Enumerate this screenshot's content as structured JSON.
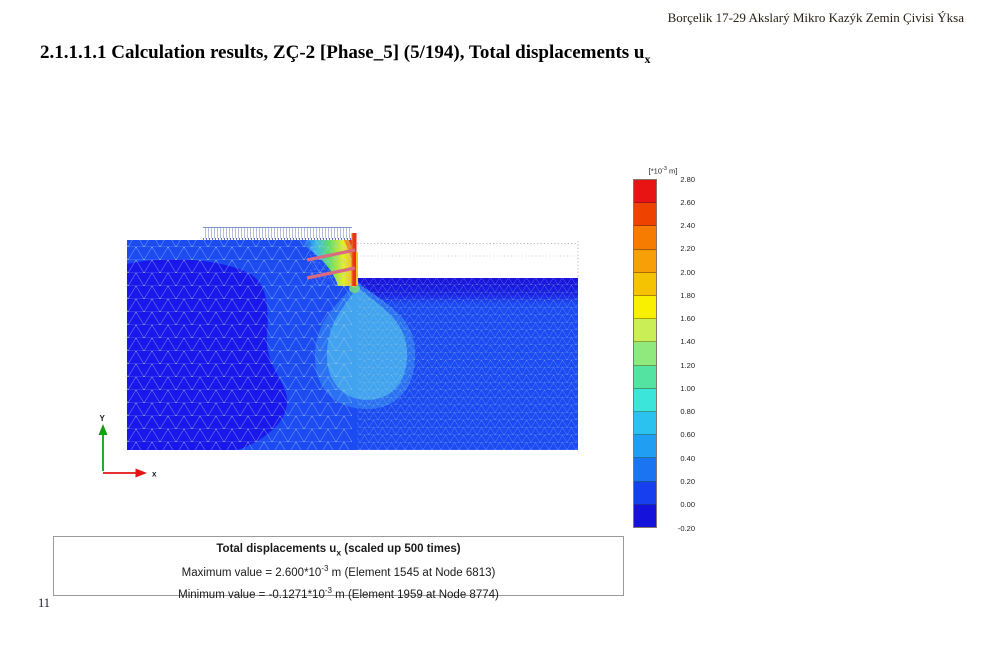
{
  "page": {
    "header_right": "Borçelik 17-29 Akslarý Mikro Kazýk Zemin Çivisi Ýksa",
    "page_number": "11"
  },
  "title": {
    "prefix": "2.1.1.1.1 Calculation results, ZÇ-2 [Phase_5] (5/194), Total displacements u",
    "subscript": "x"
  },
  "figure": {
    "axes": {
      "x_label": "x",
      "y_label": "Y"
    },
    "legend": {
      "unit_prefix": "[*10",
      "unit_exponent": "-3",
      "unit_suffix": " m]",
      "ticks": [
        "2.80",
        "2.60",
        "2.40",
        "2.20",
        "2.00",
        "1.80",
        "1.60",
        "1.40",
        "1.20",
        "1.00",
        "0.80",
        "0.60",
        "0.40",
        "0.20",
        "0.00",
        "-0.20"
      ],
      "band_colors": [
        "#e81313",
        "#ee4200",
        "#f57c00",
        "#f89e07",
        "#f6c302",
        "#f9f000",
        "#c9ee56",
        "#90e97d",
        "#55e3a2",
        "#3ce5da",
        "#2cc2ef",
        "#1f9ef2",
        "#1b74f1",
        "#173ff0",
        "#1512dc"
      ]
    },
    "colors": {
      "soil_main": "#1c4bf2",
      "soil_dark_zone": "#1a17ea",
      "excavation_dark_band": "#1a13da",
      "bulb_halo": "#2b72f2",
      "bulb_light_blue": "#42a3ee",
      "wall_red": "#e8301c",
      "nail_pink": "#d96a80",
      "load_hatch": "#7e95c8",
      "x_axis_red": "#e41414",
      "y_axis_green": "#12a012"
    }
  },
  "caption": {
    "title_prefix": "Total displacements u",
    "title_sub": "x",
    "title_suffix": " (scaled up 500 times)",
    "max_prefix": "Maximum value = 2.600*10",
    "max_exp": "-3",
    "max_suffix": " m (Element 1545 at Node 6813)",
    "min_prefix": "Minimum value = -0.1271*10",
    "min_exp": "-3",
    "min_suffix": " m (Element 1959 at Node 8774)"
  }
}
